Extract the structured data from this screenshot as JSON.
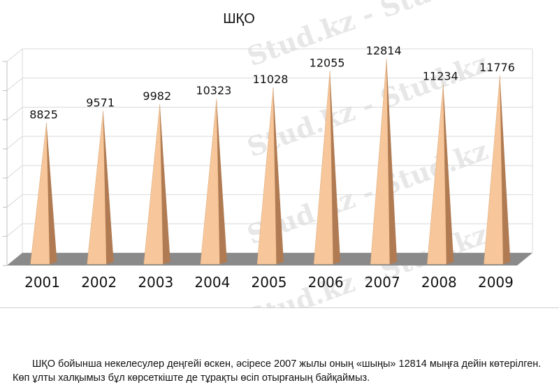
{
  "watermark": "Stud.kz - Stud.kz",
  "chart_data": {
    "type": "bar",
    "title": "ШҚО",
    "categories": [
      "2001",
      "2002",
      "2003",
      "2004",
      "2005",
      "2006",
      "2007",
      "2008",
      "2009"
    ],
    "values": [
      8825,
      9571,
      9982,
      10323,
      11028,
      12055,
      12814,
      11234,
      11776
    ],
    "ylim": [
      0,
      14000
    ],
    "grid": true,
    "legend": "none",
    "bar_shape": "pyramid",
    "colors": {
      "face": "#f7c79b",
      "shade": "#b07b52",
      "floor": "#8a8a8a"
    }
  },
  "caption": "ШҚО бойынша некелесулер деңгейі өскен, әсіресе 2007 жылы оның «шыңы» 12814 мыңға дейін көтерілген. Көп ұлты халқымыз бұл көрсеткіште де тұрақты өсіп отырғаның байқаймыз."
}
